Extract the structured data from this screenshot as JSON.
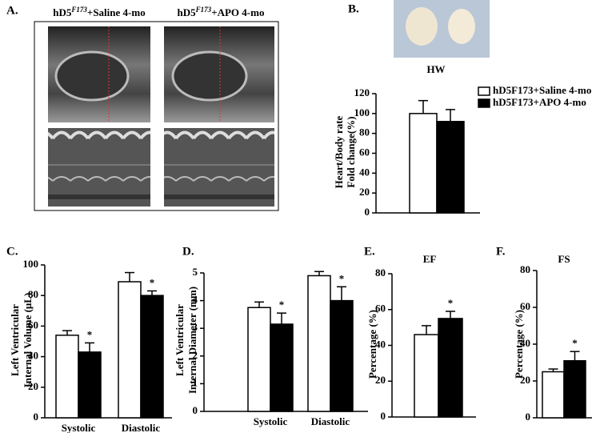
{
  "figure_a": {
    "panel": "A.",
    "headers": [
      {
        "pre": "hD5",
        "sup": "F173",
        "post": "+Saline  4-mo"
      },
      {
        "pre": "hD5",
        "sup": "F173",
        "post": "+APO 4-mo"
      }
    ]
  },
  "chart_data": [
    {
      "type": "bar",
      "panel": "B.",
      "title": "HW",
      "ylabel": [
        "Heart/Body rate",
        "Fold change(%)"
      ],
      "categories": [
        null
      ],
      "ylim": [
        0,
        120
      ],
      "yticks": [
        0,
        20,
        40,
        60,
        80,
        100,
        120
      ],
      "series": [
        {
          "name": "hD5F173+Saline 4-mo",
          "color": "#ffffff",
          "values": [
            100
          ],
          "errors": [
            13
          ]
        },
        {
          "name": "hD5F173+APO  4-mo",
          "color": "#000000",
          "values": [
            92
          ],
          "errors": [
            12
          ]
        }
      ]
    },
    {
      "type": "bar",
      "panel": "C.",
      "ylabel": [
        "Left Ventricular",
        "Internal Volume (μL)"
      ],
      "categories": [
        "Systolic",
        "Diastolic"
      ],
      "ylim": [
        0,
        100
      ],
      "yticks": [
        0,
        20,
        40,
        60,
        80,
        100
      ],
      "series": [
        {
          "color": "#ffffff",
          "values": [
            54,
            89
          ],
          "errors": [
            3,
            6
          ]
        },
        {
          "color": "#000000",
          "values": [
            43,
            80
          ],
          "errors": [
            6,
            3
          ],
          "annotations": [
            "*",
            "*"
          ]
        }
      ]
    },
    {
      "type": "bar",
      "panel": "D.",
      "ylabel": [
        "Left Ventricular",
        "Internal Diameter (mm)"
      ],
      "categories": [
        "Systolic",
        "Diastolic"
      ],
      "ylim": [
        0,
        5
      ],
      "yticks": [
        0,
        1,
        2,
        3,
        4,
        5
      ],
      "series": [
        {
          "color": "#ffffff",
          "values": [
            3.75,
            4.9
          ],
          "errors": [
            0.2,
            0.15
          ]
        },
        {
          "color": "#000000",
          "values": [
            3.15,
            4.0
          ],
          "errors": [
            0.4,
            0.5
          ],
          "annotations": [
            "*",
            "*"
          ]
        }
      ]
    },
    {
      "type": "bar",
      "panel": "E.",
      "title": "EF",
      "ylabel": [
        "Percentage (%)"
      ],
      "categories": [
        null
      ],
      "ylim": [
        0,
        80
      ],
      "yticks": [
        0,
        20,
        40,
        60,
        80
      ],
      "series": [
        {
          "color": "#ffffff",
          "values": [
            46
          ],
          "errors": [
            5
          ]
        },
        {
          "color": "#000000",
          "values": [
            55
          ],
          "errors": [
            4
          ],
          "annotations": [
            "*"
          ]
        }
      ]
    },
    {
      "type": "bar",
      "panel": "F.",
      "title": "FS",
      "ylabel": [
        "Percentage (%)"
      ],
      "categories": [
        null
      ],
      "ylim": [
        0,
        80
      ],
      "yticks": [
        0,
        20,
        40,
        60,
        80
      ],
      "series": [
        {
          "color": "#ffffff",
          "values": [
            25
          ],
          "errors": [
            1.5
          ]
        },
        {
          "color": "#000000",
          "values": [
            31
          ],
          "errors": [
            5
          ],
          "annotations": [
            "*"
          ]
        }
      ]
    }
  ]
}
